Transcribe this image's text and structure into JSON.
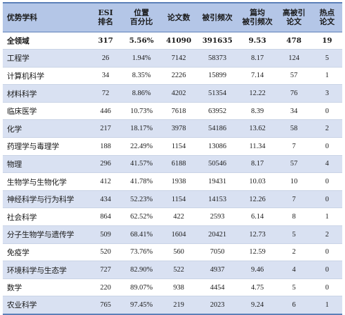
{
  "table": {
    "headers": [
      [
        "优势学科"
      ],
      [
        "ESI",
        "排名"
      ],
      [
        "位置",
        "百分比"
      ],
      [
        "论文数"
      ],
      [
        "被引频次"
      ],
      [
        "篇均",
        "被引频次"
      ],
      [
        "高被引",
        "论文"
      ],
      [
        "热点",
        "论文"
      ]
    ],
    "rows": [
      [
        "全领域",
        "317",
        "5.56%",
        "41090",
        "391635",
        "9.53",
        "478",
        "19"
      ],
      [
        "工程学",
        "26",
        "1.94%",
        "7142",
        "58373",
        "8.17",
        "124",
        "5"
      ],
      [
        "计算机科学",
        "34",
        "8.35%",
        "2226",
        "15899",
        "7.14",
        "57",
        "1"
      ],
      [
        "材料科学",
        "72",
        "8.86%",
        "4202",
        "51354",
        "12.22",
        "76",
        "3"
      ],
      [
        "临床医学",
        "446",
        "10.73%",
        "7618",
        "63952",
        "8.39",
        "34",
        "0"
      ],
      [
        "化学",
        "217",
        "18.17%",
        "3978",
        "54186",
        "13.62",
        "58",
        "2"
      ],
      [
        "药理学与毒理学",
        "188",
        "22.49%",
        "1154",
        "13086",
        "11.34",
        "7",
        "0"
      ],
      [
        "物理",
        "296",
        "41.57%",
        "6188",
        "50546",
        "8.17",
        "57",
        "4"
      ],
      [
        "生物学与生物化学",
        "412",
        "41.78%",
        "1938",
        "19431",
        "10.03",
        "10",
        "0"
      ],
      [
        "神经科学与行为科学",
        "434",
        "52.23%",
        "1154",
        "14153",
        "12.26",
        "7",
        "0"
      ],
      [
        "社会科学",
        "864",
        "62.52%",
        "422",
        "2593",
        "6.14",
        "8",
        "1"
      ],
      [
        "分子生物学与遗传学",
        "509",
        "68.41%",
        "1604",
        "20421",
        "12.73",
        "5",
        "2"
      ],
      [
        "免疫学",
        "520",
        "73.76%",
        "560",
        "7050",
        "12.59",
        "2",
        "0"
      ],
      [
        "环境科学与生态学",
        "727",
        "82.90%",
        "522",
        "4937",
        "9.46",
        "4",
        "0"
      ],
      [
        "数学",
        "220",
        "89.07%",
        "938",
        "4454",
        "4.75",
        "5",
        "0"
      ],
      [
        "农业科学",
        "765",
        "97.45%",
        "219",
        "2023",
        "9.24",
        "6",
        "1"
      ]
    ]
  }
}
